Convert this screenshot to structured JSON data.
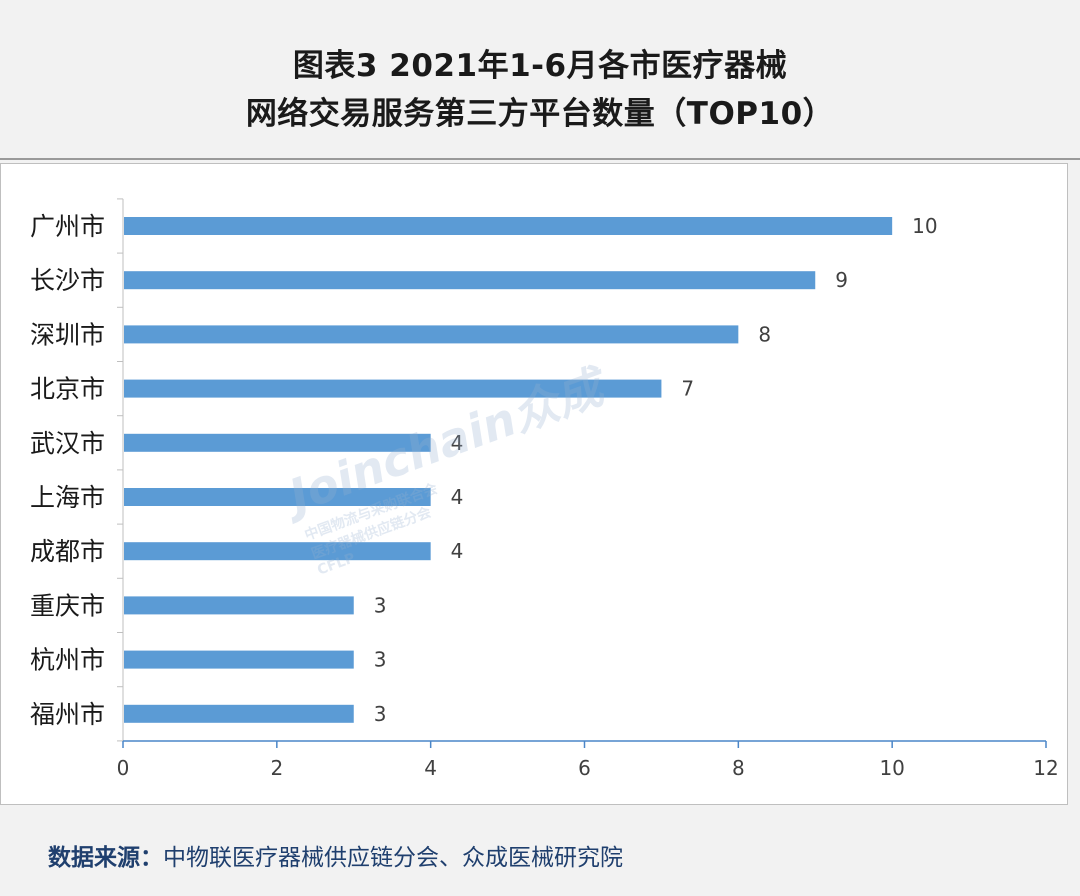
{
  "title": {
    "line1": "图表3  2021年1-6月各市医疗器械",
    "line2": "网络交易服务第三方平台数量（TOP10）"
  },
  "watermark": {
    "brand": "Joinchain众成",
    "org_line1": "中国物流与采购联合会",
    "org_line2": "医疗器械供应链分会",
    "org_abbr": "CFLP"
  },
  "source": {
    "label": "数据来源：",
    "text": "中物联医疗器械供应链分会、众成医械研究院"
  },
  "colors": {
    "bar": "#5b9bd5",
    "axis": "#4a86c8",
    "gridline": "#d9d9d9",
    "source_text": "#1f3f6e"
  },
  "chart_data": {
    "type": "bar",
    "orientation": "horizontal",
    "categories": [
      "广州市",
      "长沙市",
      "深圳市",
      "北京市",
      "武汉市",
      "上海市",
      "成都市",
      "重庆市",
      "杭州市",
      "福州市"
    ],
    "values": [
      10,
      9,
      8,
      7,
      4,
      4,
      4,
      3,
      3,
      3
    ],
    "data_labels": [
      "10",
      "9",
      "8",
      "7",
      "4",
      "4",
      "4",
      "3",
      "3",
      "3"
    ],
    "xlim": [
      0,
      12
    ],
    "x_ticks": [
      0,
      2,
      4,
      6,
      8,
      10,
      12
    ],
    "x_tick_labels": [
      "0",
      "2",
      "4",
      "6",
      "8",
      "10",
      "12"
    ],
    "grid": false,
    "legend": "none"
  }
}
